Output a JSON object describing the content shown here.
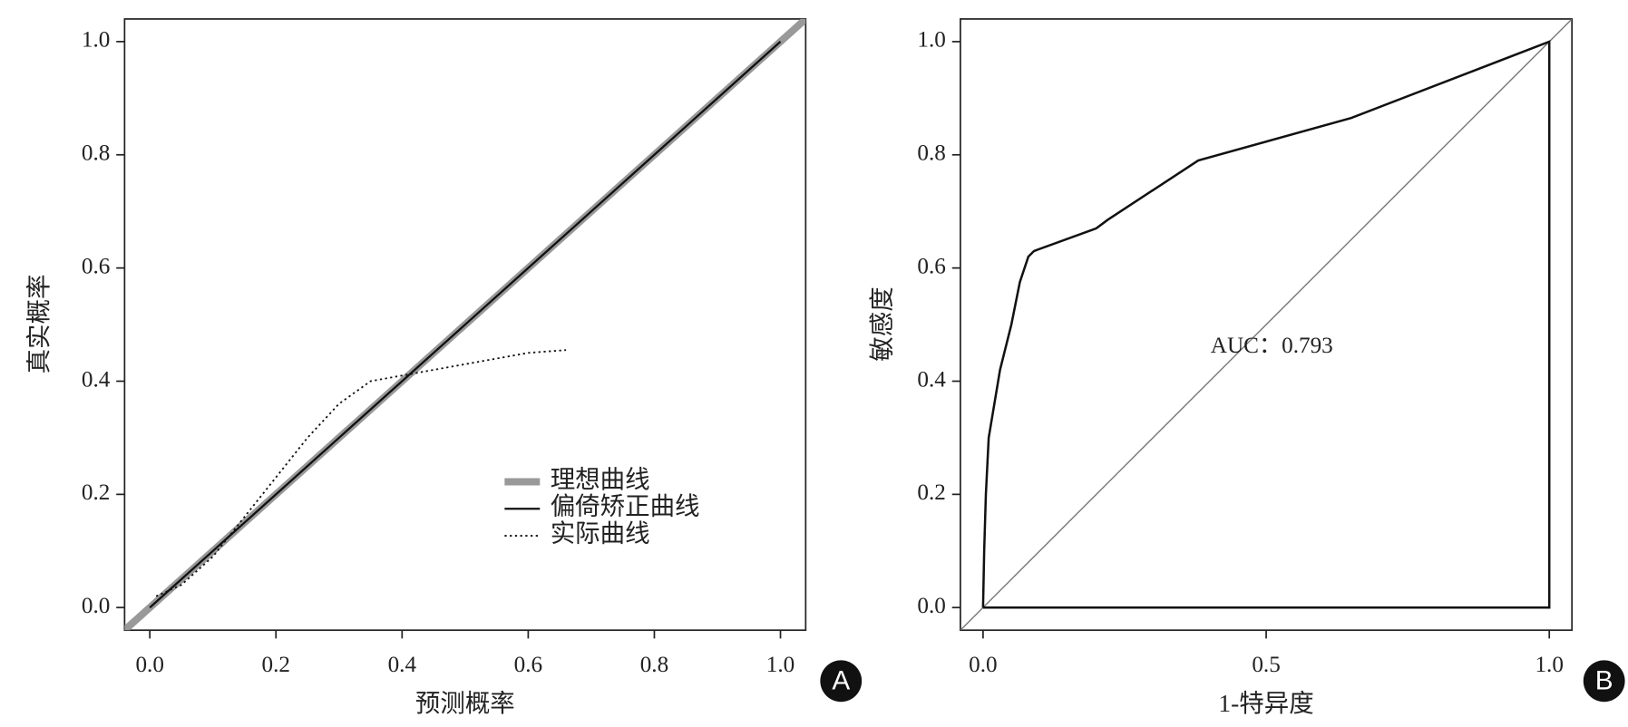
{
  "chart_data": [
    {
      "type": "line",
      "panel": "A",
      "xlabel": "预测概率",
      "ylabel": "真实概率",
      "xlim": [
        -0.04,
        1.04
      ],
      "ylim": [
        -0.04,
        1.04
      ],
      "xticks": [
        {
          "value": 0,
          "label": "0.0"
        },
        {
          "value": 0.2,
          "label": "0.2"
        },
        {
          "value": 0.4,
          "label": "0.4"
        },
        {
          "value": 0.6,
          "label": "0.6"
        },
        {
          "value": 0.8,
          "label": "0.8"
        },
        {
          "value": 1,
          "label": "1.0"
        }
      ],
      "yticks": [
        {
          "value": 0,
          "label": "0.0"
        },
        {
          "value": 0.2,
          "label": "0.2"
        },
        {
          "value": 0.4,
          "label": "0.4"
        },
        {
          "value": 0.6,
          "label": "0.6"
        },
        {
          "value": 0.8,
          "label": "0.8"
        },
        {
          "value": 1,
          "label": "1.0"
        }
      ],
      "legend": "lower right",
      "series": [
        {
          "name": "理想曲线",
          "color": "#999999",
          "width": 7,
          "dash": "solid",
          "x": [
            -0.04,
            1.04
          ],
          "values": [
            -0.04,
            1.04
          ]
        },
        {
          "name": "偏倚矫正曲线",
          "color": "#111111",
          "width": 2,
          "dash": "solid",
          "x": [
            0,
            0.1,
            0.2,
            0.3,
            0.4,
            0.5,
            0.6,
            0.7,
            0.8,
            0.9,
            1
          ],
          "values": [
            0,
            0.1,
            0.2,
            0.3,
            0.4,
            0.5,
            0.6,
            0.7,
            0.8,
            0.9,
            1
          ]
        },
        {
          "name": "实际曲线",
          "color": "#111111",
          "width": 1.6,
          "dash": "dotted",
          "x": [
            0.01,
            0.05,
            0.1,
            0.15,
            0.2,
            0.25,
            0.3,
            0.35,
            0.4,
            0.5,
            0.6,
            0.66
          ],
          "values": [
            0.02,
            0.04,
            0.09,
            0.16,
            0.23,
            0.3,
            0.36,
            0.4,
            0.41,
            0.43,
            0.45,
            0.455
          ]
        }
      ]
    },
    {
      "type": "line",
      "panel": "B",
      "xlabel": "1-特异度",
      "ylabel": "敏感度",
      "annotation": "AUC：0.793",
      "xlim": [
        -0.04,
        1.04
      ],
      "ylim": [
        -0.04,
        1.04
      ],
      "xticks": [
        {
          "value": 0,
          "label": "0.0"
        },
        0.5,
        {
          "value": 1,
          "label": "1.0"
        }
      ],
      "yticks": [
        {
          "value": 0,
          "label": "0.0"
        },
        {
          "value": 0.2,
          "label": "0.2"
        },
        {
          "value": 0.4,
          "label": "0.4"
        },
        {
          "value": 0.6,
          "label": "0.6"
        },
        {
          "value": 0.8,
          "label": "0.8"
        },
        {
          "value": 1,
          "label": "1.0"
        }
      ],
      "series": [
        {
          "color": "#777777",
          "width": 1.2,
          "dash": "solid",
          "x": [
            -0.04,
            1.04
          ],
          "values": [
            -0.04,
            1.04
          ]
        },
        {
          "color": "#111111",
          "width": 2.2,
          "dash": "solid",
          "x": [
            0,
            0.002,
            0.005,
            0.01,
            0.03,
            0.05,
            0.065,
            0.08,
            0.09,
            0.2,
            0.22,
            0.38,
            0.65,
            1,
            1,
            0
          ],
          "values": [
            0,
            0.1,
            0.2,
            0.3,
            0.42,
            0.5,
            0.575,
            0.62,
            0.63,
            0.67,
            0.685,
            0.79,
            0.865,
            1,
            0,
            0
          ]
        }
      ]
    }
  ]
}
